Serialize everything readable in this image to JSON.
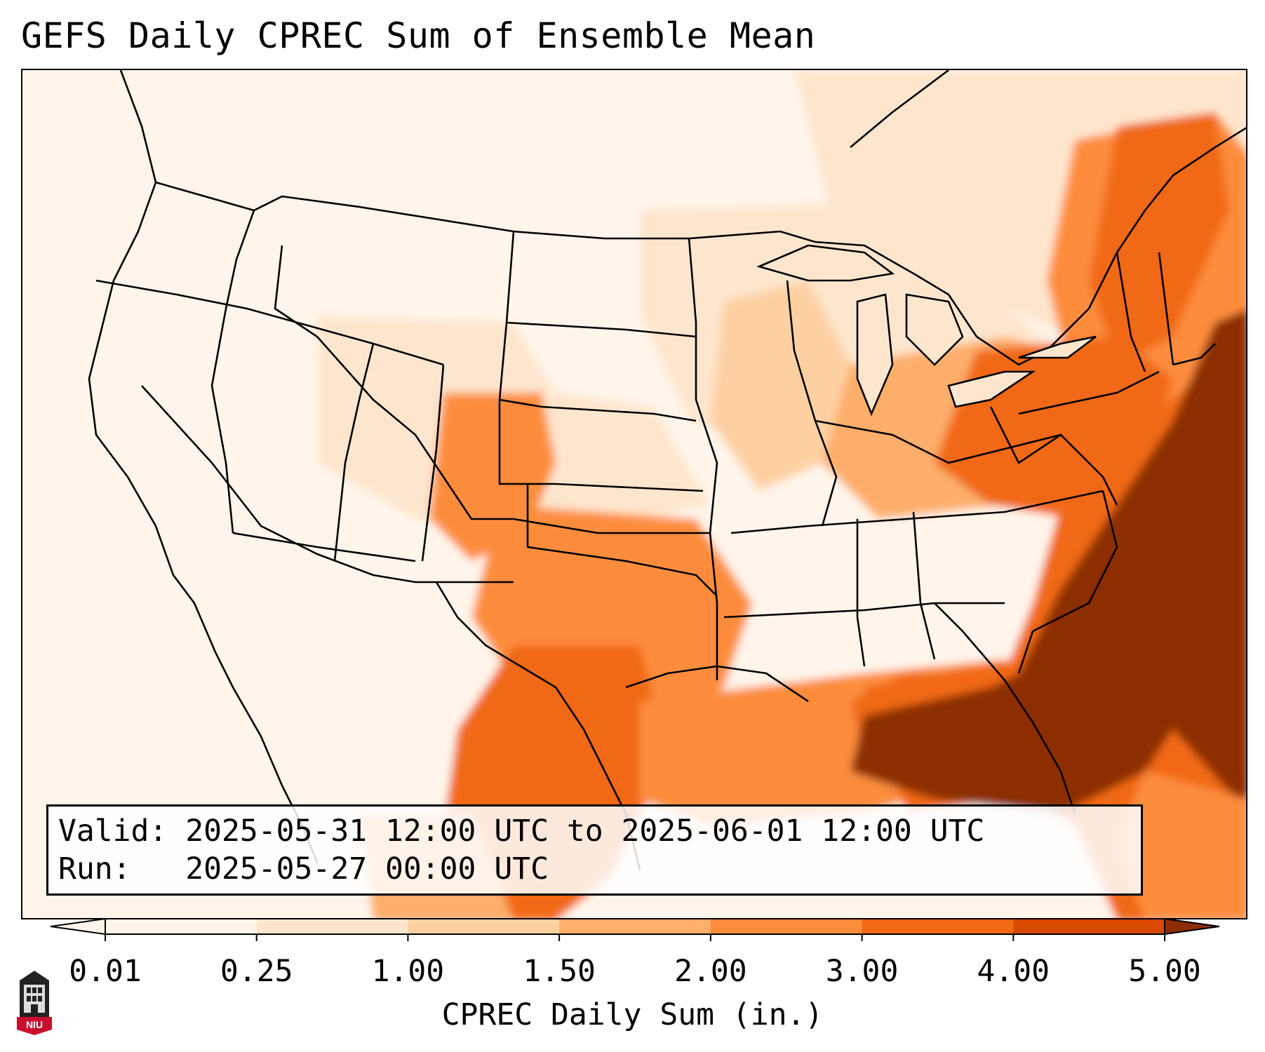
{
  "title": "GEFS Daily CPREC Sum of Ensemble Mean",
  "info": {
    "valid": "Valid: 2025-05-31 12:00 UTC to 2025-06-01 12:00 UTC",
    "run": "Run:   2025-05-27 00:00 UTC"
  },
  "colorbar": {
    "label": "CPREC Daily Sum (in.)",
    "ticks": [
      "0.01",
      "0.25",
      "1.00",
      "1.50",
      "2.00",
      "3.00",
      "4.00",
      "5.00"
    ],
    "colors": [
      "#fff5eb",
      "#fee6ce",
      "#fdd0a2",
      "#fdae6b",
      "#fd8d3c",
      "#f16913",
      "#d94801",
      "#8c2d04"
    ],
    "extend": "both"
  },
  "logo": {
    "text": "NIU",
    "icon": "niu-tower-logo"
  },
  "map": {
    "domain": "North America (CONUS)",
    "field": "convective precipitation",
    "borders": "state and country outlines"
  }
}
